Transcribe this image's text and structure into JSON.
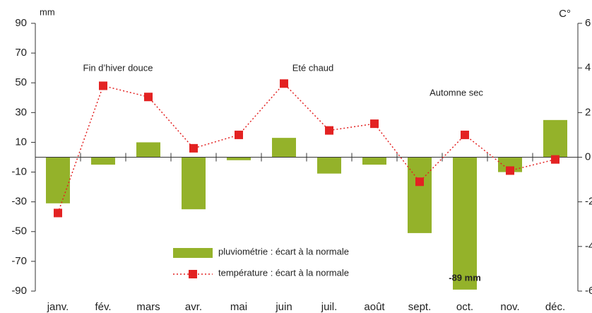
{
  "chart_data": {
    "type": "bar-line",
    "y_label": "mm",
    "y2_label": "C°",
    "categories": [
      "janv.",
      "fév.",
      "mars",
      "avr.",
      "mai",
      "juin",
      "juil.",
      "août",
      "sept.",
      "oct.",
      "nov.",
      "déc."
    ],
    "series": [
      {
        "name": "pluviométrie : écart à la normale",
        "type": "bar",
        "color": "#94b22a",
        "values": [
          -31,
          -5,
          10,
          -35,
          -2,
          13,
          -11,
          -5,
          -51,
          -89,
          -10,
          25
        ],
        "value_labels": [
          null,
          null,
          null,
          null,
          null,
          null,
          null,
          null,
          null,
          "-89 mm",
          null,
          null
        ]
      },
      {
        "name": "température : écart à la normale",
        "type": "line",
        "axis": "y2",
        "color": "#e32222",
        "values": [
          -2.5,
          3.2,
          2.7,
          0.4,
          1.0,
          3.3,
          1.2,
          1.5,
          -1.1,
          1.0,
          -0.6,
          -0.1
        ]
      }
    ],
    "ylim": [
      -90,
      90
    ],
    "yticks": [
      90,
      70,
      50,
      30,
      10,
      -10,
      -30,
      -50,
      -70,
      -90
    ],
    "y2lim": [
      -6,
      6
    ],
    "y2ticks": [
      6,
      4,
      2,
      0,
      -2,
      -4,
      -6
    ],
    "annotations": [
      "Fin d’hiver douce",
      "Eté chaud",
      "Automne sec"
    ],
    "grid": false
  }
}
